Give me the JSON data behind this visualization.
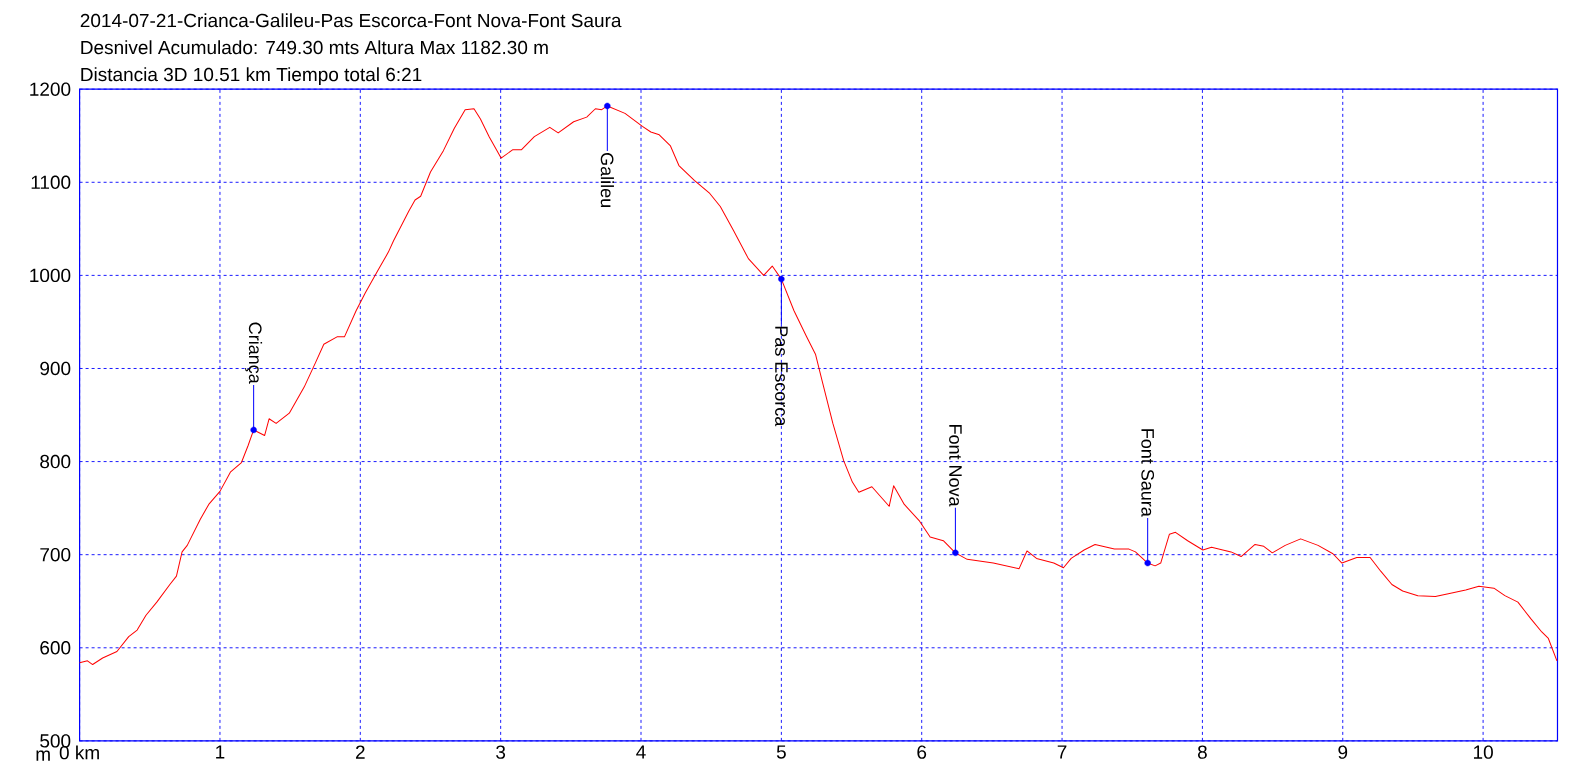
{
  "chart_data": {
    "type": "line",
    "title": "2014-07-21-Crianca-Galileu-Pas Escorca-Font Nova-Font Saura",
    "subtitle": "Desnivel Acumulado: 749.30 mts  Altura Max 1182.30 m",
    "ylabel": "m",
    "xlim": [
      0,
      10.53
    ],
    "ylim": [
      500,
      1200
    ],
    "xticks": [
      {
        "value": 0,
        "label": "0 km"
      },
      1,
      2,
      3,
      4,
      5,
      6,
      7,
      8,
      9,
      10
    ],
    "yticks": [
      500,
      600,
      700,
      800,
      900,
      1000,
      1100,
      1200
    ],
    "grid": true,
    "annotations": [
      "Distancia 3D 10.51 km  Tiempo total 6:21",
      {
        "text": "Criança",
        "x": 1.24,
        "y": 834
      },
      {
        "text": "Galileu",
        "x": 3.76,
        "y": 1182
      },
      {
        "text": "Pas Escorca",
        "x": 5.0,
        "y": 996
      },
      {
        "text": "Font Nova",
        "x": 6.24,
        "y": 702
      },
      {
        "text": "Font Saura",
        "x": 7.61,
        "y": 691
      }
    ],
    "series": [
      {
        "color": "#ff0000",
        "x": [
          0,
          0.056,
          0.093,
          0.164,
          0.266,
          0.35,
          0.41,
          0.473,
          0.55,
          0.643,
          0.69,
          0.73,
          0.767,
          0.86,
          0.92,
          1.0,
          1.076,
          1.153,
          1.2,
          1.24,
          1.318,
          1.35,
          1.4,
          1.494,
          1.6,
          1.68,
          1.74,
          1.834,
          1.887,
          1.97,
          2.035,
          2.128,
          2.2,
          2.236,
          2.345,
          2.39,
          2.43,
          2.5,
          2.592,
          2.67,
          2.747,
          2.81,
          2.856,
          2.918,
          3.003,
          3.087,
          3.149,
          3.24,
          3.35,
          3.41,
          3.52,
          3.613,
          3.675,
          3.72,
          3.76,
          3.886,
          4.01,
          4.07,
          4.13,
          4.21,
          4.27,
          4.38,
          4.49,
          4.565,
          4.66,
          4.765,
          4.874,
          4.935,
          5.0,
          5.09,
          5.18,
          5.244,
          5.29,
          5.367,
          5.444,
          5.506,
          5.552,
          5.645,
          5.768,
          5.8,
          5.876,
          5.985,
          6.06,
          6.154,
          6.24,
          6.324,
          6.51,
          6.694,
          6.75,
          6.818,
          6.941,
          7.01,
          7.065,
          7.157,
          7.235,
          7.373,
          7.477,
          7.523,
          7.61,
          7.663,
          7.703,
          7.765,
          7.808,
          7.895,
          8.003,
          8.065,
          8.204,
          8.276,
          8.375,
          8.437,
          8.498,
          8.59,
          8.7,
          8.824,
          8.93,
          8.994,
          9.1,
          9.195,
          9.272,
          9.35,
          9.427,
          9.535,
          9.66,
          9.752,
          9.876,
          9.97,
          10.077,
          10.155,
          10.248,
          10.341,
          10.418,
          10.465,
          10.526
        ],
        "values": [
          584,
          586,
          582,
          589,
          596,
          612,
          619,
          635,
          649,
          668,
          677,
          703,
          710,
          738,
          754,
          768,
          789,
          799,
          817,
          834,
          828,
          846,
          841,
          852,
          880,
          906,
          926,
          934,
          934,
          962,
          981,
          1006,
          1025,
          1037,
          1069,
          1081,
          1085,
          1111,
          1134,
          1158,
          1178,
          1179,
          1168,
          1149,
          1126,
          1135,
          1135,
          1149,
          1159,
          1153,
          1165,
          1170,
          1179,
          1178,
          1182,
          1174,
          1160,
          1154,
          1151,
          1139,
          1118,
          1102,
          1088,
          1074,
          1048,
          1018,
          1000,
          1010,
          996,
          962,
          934,
          915,
          887,
          841,
          801,
          778,
          767,
          773,
          752,
          774,
          754,
          736,
          719,
          715,
          702,
          695,
          691,
          685,
          704,
          696,
          691,
          686,
          696,
          705,
          711,
          706,
          706,
          703,
          691,
          688,
          691,
          722,
          724,
          715,
          705,
          708,
          703,
          698,
          711,
          709,
          702,
          710,
          717,
          710,
          701,
          691,
          697,
          697,
          682,
          668,
          661,
          656,
          655,
          658,
          662,
          666,
          664,
          656,
          649,
          631,
          617,
          610,
          586
        ]
      }
    ]
  }
}
